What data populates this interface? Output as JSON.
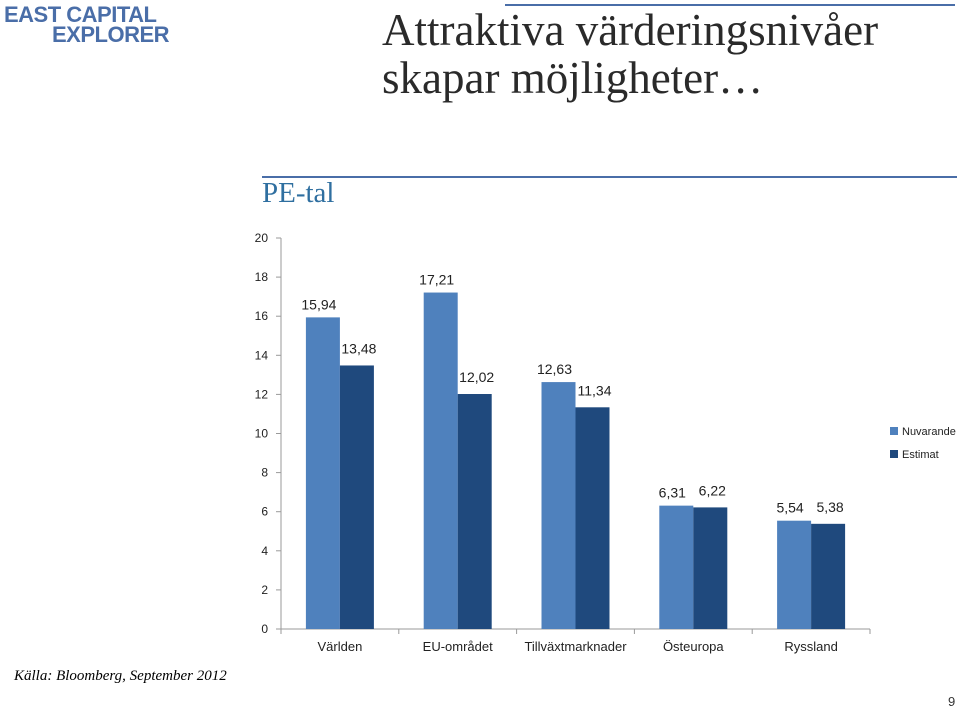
{
  "logo": {
    "line1": "EAST CAPITAL",
    "line2": "EXPLORER"
  },
  "title": "Attraktiva värderingsnivåer skapar möjligheter…",
  "source": "Källa: Bloomberg, September 2012",
  "page_number": "9",
  "colors": {
    "nuvarande": "#4f81bd",
    "estimat": "#1f497d",
    "accent": "#4a6ea8",
    "subtitle": "#2f6fa0"
  },
  "chart_data": {
    "type": "bar",
    "title": "PE-tal",
    "xlabel": "",
    "ylabel": "",
    "ylim": [
      0,
      20
    ],
    "yticks": [
      "0",
      "2",
      "4",
      "6",
      "8",
      "10",
      "12",
      "14",
      "16",
      "18",
      "20"
    ],
    "categories": [
      "Världen",
      "EU-området",
      "Tillväxtmarknader",
      "Östeuropa",
      "Ryssland"
    ],
    "series": [
      {
        "name": "Nuvarande",
        "values": [
          15.94,
          17.21,
          12.63,
          6.31,
          5.54
        ],
        "labels": [
          "15,94",
          "17,21",
          "12,63",
          "6,31",
          "5,54"
        ]
      },
      {
        "name": "Estimat",
        "values": [
          13.48,
          12.02,
          11.34,
          6.22,
          5.38
        ],
        "labels": [
          "13,48",
          "12,02",
          "11,34",
          "6,22",
          "5,38"
        ]
      }
    ],
    "legend": "right"
  }
}
